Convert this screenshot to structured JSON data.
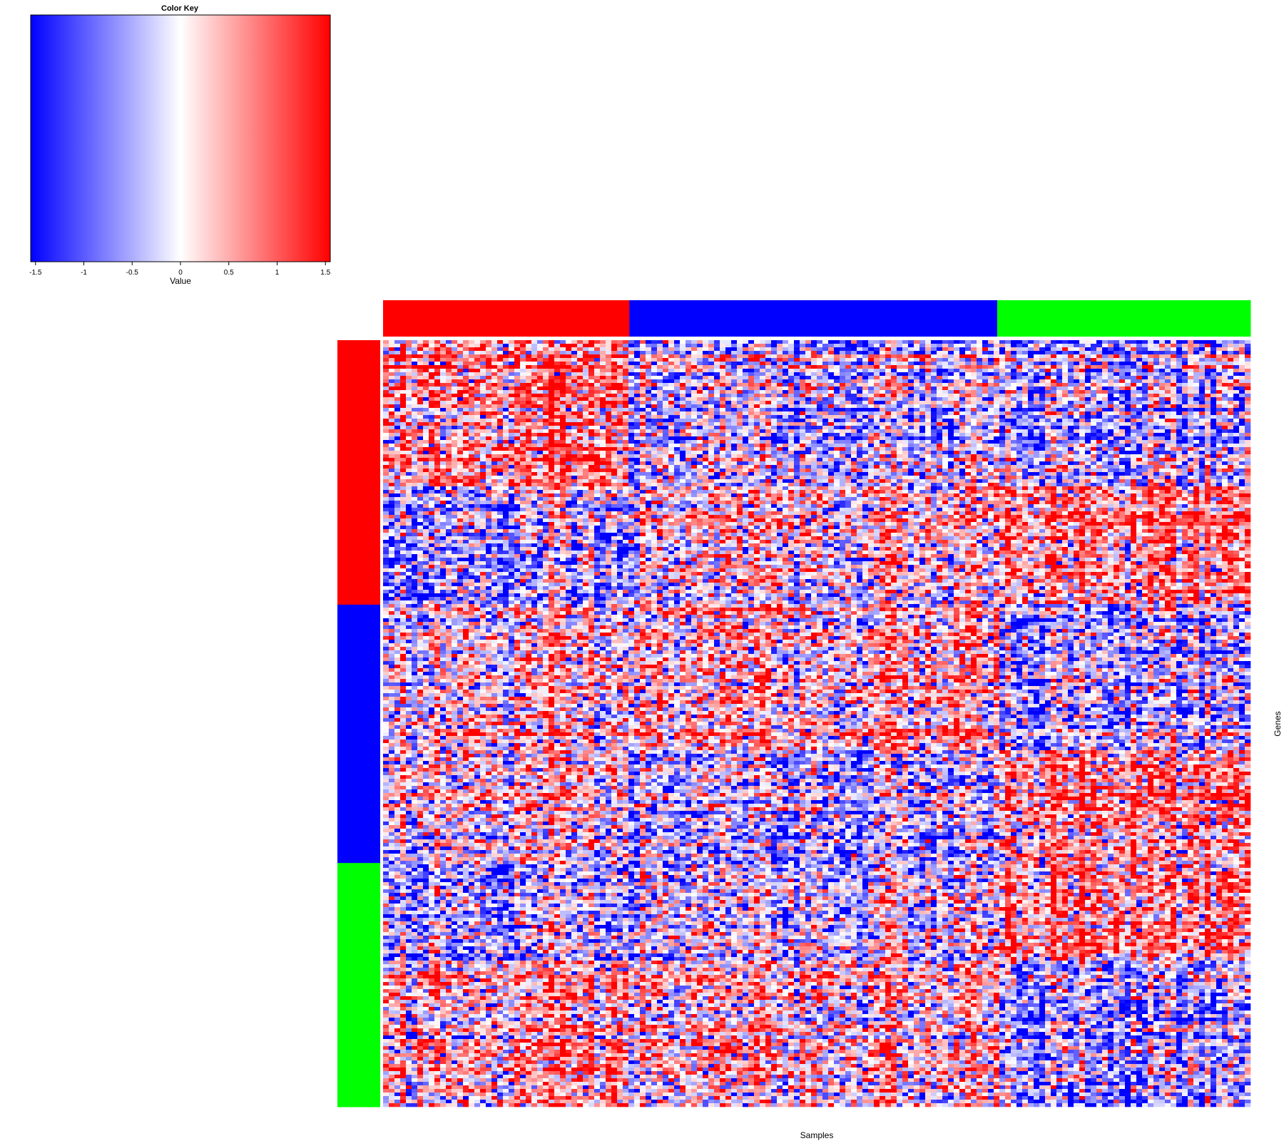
{
  "chart_data": {
    "type": "heatmap",
    "xlabel": "Samples",
    "ylabel": "Genes",
    "color_key": {
      "title": "Color Key",
      "xlabel": "Value",
      "range": [
        -1.55,
        1.55
      ],
      "ticks": [
        -1.5,
        -1,
        -0.5,
        0,
        0.5,
        1,
        1.5
      ],
      "tick_labels": [
        "-1.5",
        "-1",
        "-0.5",
        "0",
        "0.5",
        "1",
        "1.5"
      ],
      "low_color": "#0000ff",
      "mid_color": "#ffffff",
      "high_color": "#ff0000"
    },
    "column_groups": [
      {
        "color": "#ff0000",
        "fraction": 0.284
      },
      {
        "color": "#0000ff",
        "fraction": 0.424
      },
      {
        "color": "#00ff00",
        "fraction": 0.292
      }
    ],
    "row_groups": [
      {
        "color": "#ff0000",
        "fraction": 0.345
      },
      {
        "color": "#0000ff",
        "fraction": 0.337
      },
      {
        "color": "#00ff00",
        "fraction": 0.318
      }
    ],
    "row_blocks": [
      {
        "fraction": 0.193,
        "mean_by_column_group": [
          0.55,
          -0.35,
          -0.45
        ]
      },
      {
        "fraction": 0.152,
        "mean_by_column_group": [
          -0.6,
          0.05,
          0.65
        ]
      },
      {
        "fraction": 0.192,
        "mean_by_column_group": [
          0.05,
          0.25,
          -0.45
        ]
      },
      {
        "fraction": 0.145,
        "mean_by_column_group": [
          0.0,
          -0.45,
          0.55
        ]
      },
      {
        "fraction": 0.126,
        "mean_by_column_group": [
          -0.55,
          -0.15,
          0.75
        ]
      },
      {
        "fraction": 0.192,
        "mean_by_column_group": [
          0.35,
          0.25,
          -0.5
        ]
      }
    ]
  }
}
